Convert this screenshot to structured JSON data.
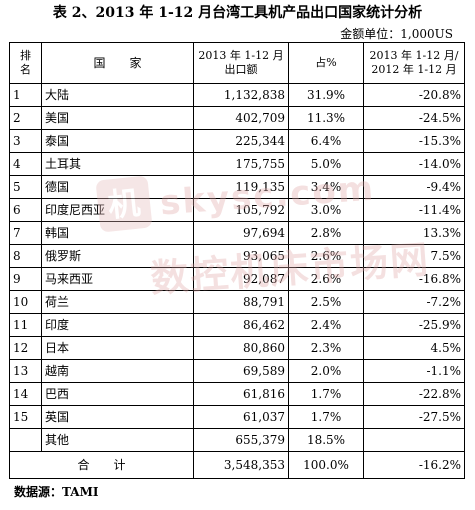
{
  "title": "表 2、2013 年 1-12 月台湾工具机产品出口国家统计分析",
  "unit": "金额单位：1,000US",
  "header": {
    "rank_line1": "排",
    "rank_line2": "名",
    "country": "国　　家",
    "value_line1": "2013 年 1-12 月",
    "value_line2": "出口额",
    "share": "占%",
    "growth_line1": "2013 年 1-12 月/",
    "growth_line2": "2012 年 1-12 月"
  },
  "rows": [
    {
      "rank": "1",
      "country": "大陆",
      "value": "1,132,838",
      "share": "31.9%",
      "growth": "-20.8%"
    },
    {
      "rank": "2",
      "country": "美国",
      "value": "402,709",
      "share": "11.3%",
      "growth": "-24.5%"
    },
    {
      "rank": "3",
      "country": "泰国",
      "value": "225,344",
      "share": "6.4%",
      "growth": "-15.3%"
    },
    {
      "rank": "4",
      "country": "土耳其",
      "value": "175,755",
      "share": "5.0%",
      "growth": "-14.0%"
    },
    {
      "rank": "5",
      "country": "德国",
      "value": "119,135",
      "share": "3.4%",
      "growth": "-9.4%"
    },
    {
      "rank": "6",
      "country": "印度尼西亚",
      "value": "105,792",
      "share": "3.0%",
      "growth": "-11.4%"
    },
    {
      "rank": "7",
      "country": "韩国",
      "value": "97,694",
      "share": "2.8%",
      "growth": "13.3%"
    },
    {
      "rank": "8",
      "country": "俄罗斯",
      "value": "93,065",
      "share": "2.6%",
      "growth": "7.5%"
    },
    {
      "rank": "9",
      "country": "马来西亚",
      "value": "92,087",
      "share": "2.6%",
      "growth": "-16.8%"
    },
    {
      "rank": "10",
      "country": "荷兰",
      "value": "88,791",
      "share": "2.5%",
      "growth": "-7.2%"
    },
    {
      "rank": "11",
      "country": "印度",
      "value": "86,462",
      "share": "2.4%",
      "growth": "-25.9%"
    },
    {
      "rank": "12",
      "country": "日本",
      "value": "80,860",
      "share": "2.3%",
      "growth": "4.5%"
    },
    {
      "rank": "13",
      "country": "越南",
      "value": "69,589",
      "share": "2.0%",
      "growth": "-1.1%"
    },
    {
      "rank": "14",
      "country": "巴西",
      "value": "61,816",
      "share": "1.7%",
      "growth": "-22.8%"
    },
    {
      "rank": "15",
      "country": "英国",
      "value": "61,037",
      "share": "1.7%",
      "growth": "-27.5%"
    },
    {
      "rank": "",
      "country": "其他",
      "value": "655,379",
      "share": "18.5%",
      "growth": ""
    }
  ],
  "total": {
    "label": "合　　计",
    "value": "3,548,353",
    "share": "100.0%",
    "growth": "-16.2%"
  },
  "source": "数据源：TAMI",
  "watermark": {
    "badge": "机",
    "url": "skysc.com",
    "cn": "数控机床市场网",
    "color": "#e0a8a8"
  }
}
